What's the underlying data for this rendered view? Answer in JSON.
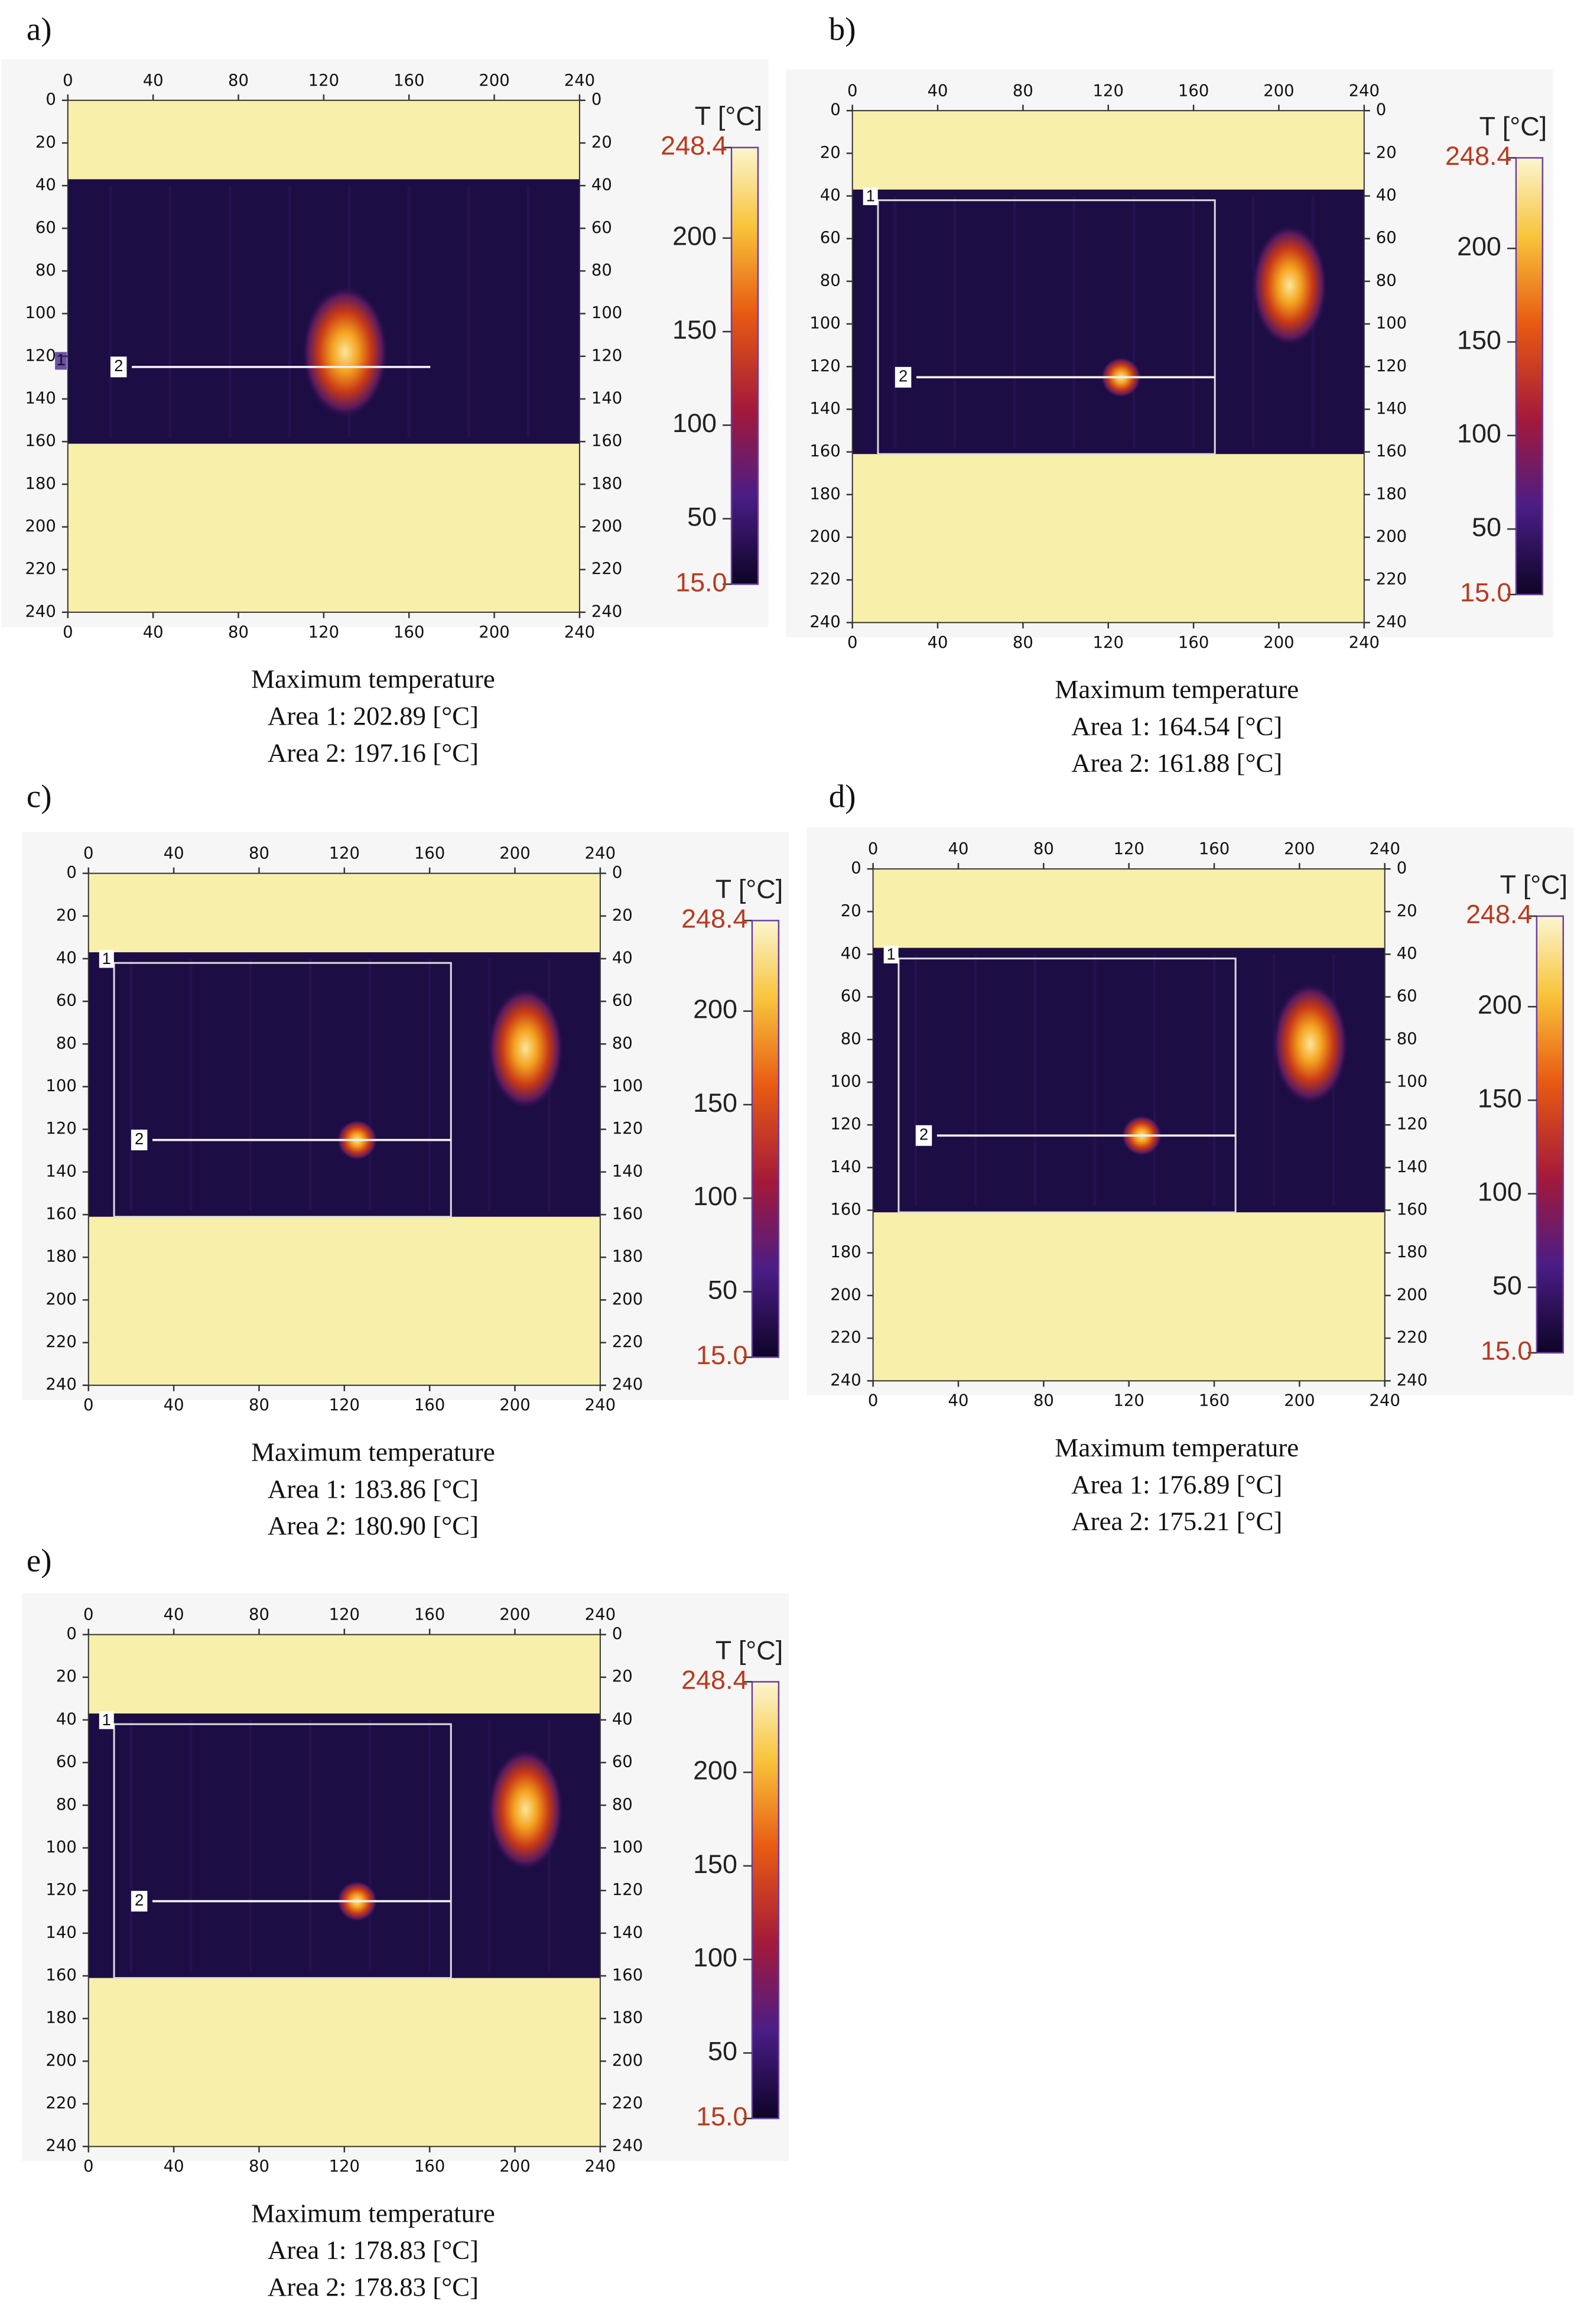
{
  "x_ticks": [
    0,
    40,
    80,
    120,
    160,
    200,
    240
  ],
  "y_ticks": [
    0,
    20,
    40,
    60,
    80,
    100,
    120,
    140,
    160,
    180,
    200,
    220,
    240
  ],
  "axis_range": [
    0,
    240
  ],
  "colorbar": {
    "title": "T [°C]",
    "max": {
      "value": 248.4,
      "label": "248.4"
    },
    "min": {
      "value": 15.0,
      "label": "15.0"
    },
    "ticks": [
      50,
      100,
      150,
      200
    ]
  },
  "panels": [
    {
      "label": "a)",
      "markers": [
        "1",
        "2"
      ],
      "caption": [
        "Maximum temperature",
        "Area 1: 202.89 [°C]",
        "Area 2: 197.16 [°C]"
      ]
    },
    {
      "label": "b)",
      "markers": [
        "1",
        "2"
      ],
      "caption": [
        "Maximum temperature",
        "Area 1: 164.54 [°C]",
        "Area 2: 161.88 [°C]"
      ]
    },
    {
      "label": "c)",
      "markers": [
        "1",
        "2"
      ],
      "caption": [
        "Maximum temperature",
        "Area 1: 183.86 [°C]",
        "Area 2: 180.90 [°C]"
      ]
    },
    {
      "label": "d)",
      "markers": [
        "1",
        "2"
      ],
      "caption": [
        "Maximum temperature",
        "Area 1: 176.89 [°C]",
        "Area 2: 175.21 [°C]"
      ]
    },
    {
      "label": "e)",
      "markers": [
        "1",
        "2"
      ],
      "caption": [
        "Maximum temperature",
        "Area 1: 178.83 [°C]",
        "Area 2: 178.83 [°C]"
      ]
    }
  ]
}
